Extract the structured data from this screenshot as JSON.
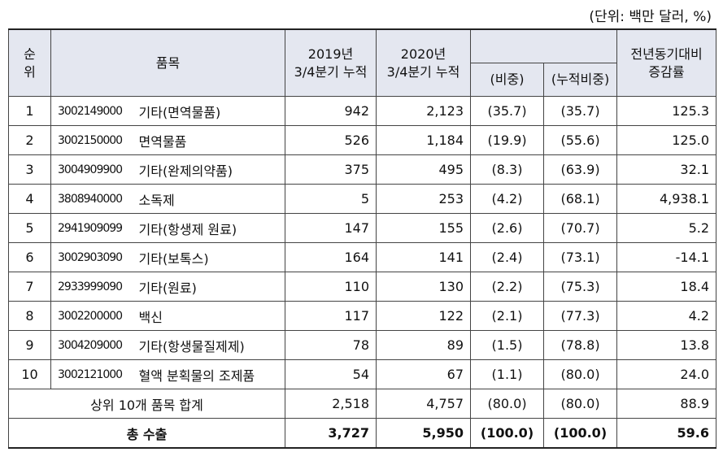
{
  "unit_note": "(단위: 백만 달러, %)",
  "table": {
    "header": {
      "rank": "순\n위",
      "item": "품목",
      "y2019": "2019년\n3/4분기 누적",
      "y2020": "2020년\n3/4분기 누적",
      "share": "(비중)",
      "cum_share": "(누적비중)",
      "growth": "전년동기대비\n증감률"
    },
    "rows": [
      [
        "1",
        "3002149000",
        "기타(면역물품)",
        "942",
        "2,123",
        "(35.7)",
        "(35.7)",
        "125.3"
      ],
      [
        "2",
        "3002150000",
        "면역물품",
        "526",
        "1,184",
        "(19.9)",
        "(55.6)",
        "125.0"
      ],
      [
        "3",
        "3004909900",
        "기타(완제의약품)",
        "375",
        "495",
        "(8.3)",
        "(63.9)",
        "32.1"
      ],
      [
        "4",
        "3808940000",
        "소독제",
        "5",
        "253",
        "(4.2)",
        "(68.1)",
        "4,938.1"
      ],
      [
        "5",
        "2941909099",
        "기타(항생제 원료)",
        "147",
        "155",
        "(2.6)",
        "(70.7)",
        "5.2"
      ],
      [
        "6",
        "3002903090",
        "기타(보톡스)",
        "164",
        "141",
        "(2.4)",
        "(73.1)",
        "-14.1"
      ],
      [
        "7",
        "2933999090",
        "기타(원료)",
        "110",
        "130",
        "(2.2)",
        "(75.3)",
        "18.4"
      ],
      [
        "8",
        "3002200000",
        "백신",
        "117",
        "122",
        "(2.1)",
        "(77.3)",
        "4.2"
      ],
      [
        "9",
        "3004209000",
        "기타(항생물질제제)",
        "78",
        "89",
        "(1.5)",
        "(78.8)",
        "13.8"
      ],
      [
        "10",
        "3002121000",
        "혈액 분획물의 조제품",
        "54",
        "67",
        "(1.1)",
        "(80.0)",
        "24.0"
      ]
    ],
    "summary_rows": [
      [
        "상위 10개 품목 합계",
        "2,518",
        "4,757",
        "(80.0)",
        "(80.0)",
        "88.9"
      ],
      [
        "총 수출",
        "3,727",
        "5,950",
        "(100.0)",
        "(100.0)",
        "59.6"
      ]
    ]
  }
}
